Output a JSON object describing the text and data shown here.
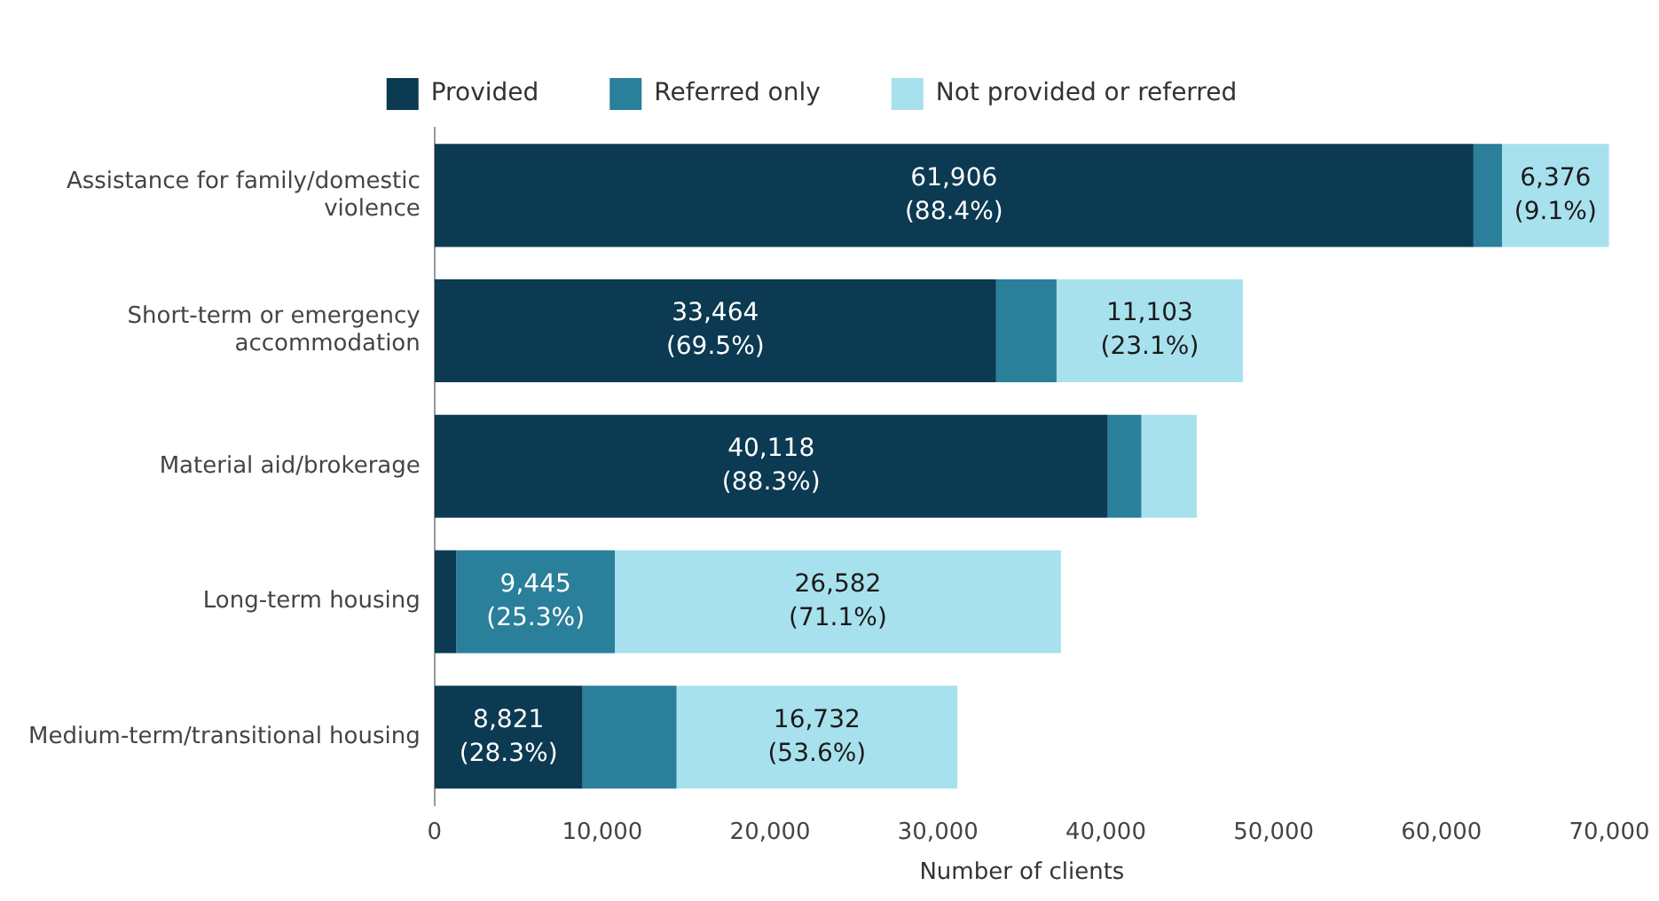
{
  "chart_data": {
    "type": "bar",
    "orientation": "horizontal",
    "stacked": true,
    "xlabel": "Number of clients",
    "legend": "top",
    "categories": [
      "Assistance for family/domestic violence",
      "Short-term or emergency accommodation",
      "Material aid/brokerage",
      "Long-term housing",
      "Medium-term/transitional housing"
    ],
    "series": [
      {
        "name": "Provided",
        "color": "#0b3a52",
        "values": [
          61906,
          33464,
          40118,
          1300,
          8821
        ],
        "value_labels": [
          "61,906\n(88.4%)",
          "33,464\n(69.5%)",
          "40,118\n(88.3%)",
          null,
          "8,821\n(28.3%)"
        ]
      },
      {
        "name": "Referred only",
        "color": "#2a7f9a",
        "values": [
          1700,
          3600,
          2000,
          9445,
          5600
        ],
        "value_labels": [
          null,
          null,
          null,
          "9,445\n(25.3%)",
          null
        ]
      },
      {
        "name": "Not provided or referred",
        "color": "#a8e1ee",
        "values": [
          6376,
          11103,
          3300,
          26582,
          16732
        ],
        "value_labels": [
          "6,376\n(9.1%)",
          "11,103\n(23.1%)",
          null,
          "26,582\n(71.1%)",
          "16,732\n(53.6%)"
        ]
      }
    ],
    "xlim": [
      0,
      70000
    ],
    "xticks": [
      {
        "value": 0,
        "label": "0"
      },
      {
        "value": 10000,
        "label": "10,000"
      },
      {
        "value": 20000,
        "label": "20,000"
      },
      {
        "value": 30000,
        "label": "30,000"
      },
      {
        "value": 40000,
        "label": "40,000"
      },
      {
        "value": 50000,
        "label": "50,000"
      },
      {
        "value": 60000,
        "label": "60,000"
      },
      {
        "value": 70000,
        "label": "70,000"
      }
    ],
    "grid": false
  }
}
